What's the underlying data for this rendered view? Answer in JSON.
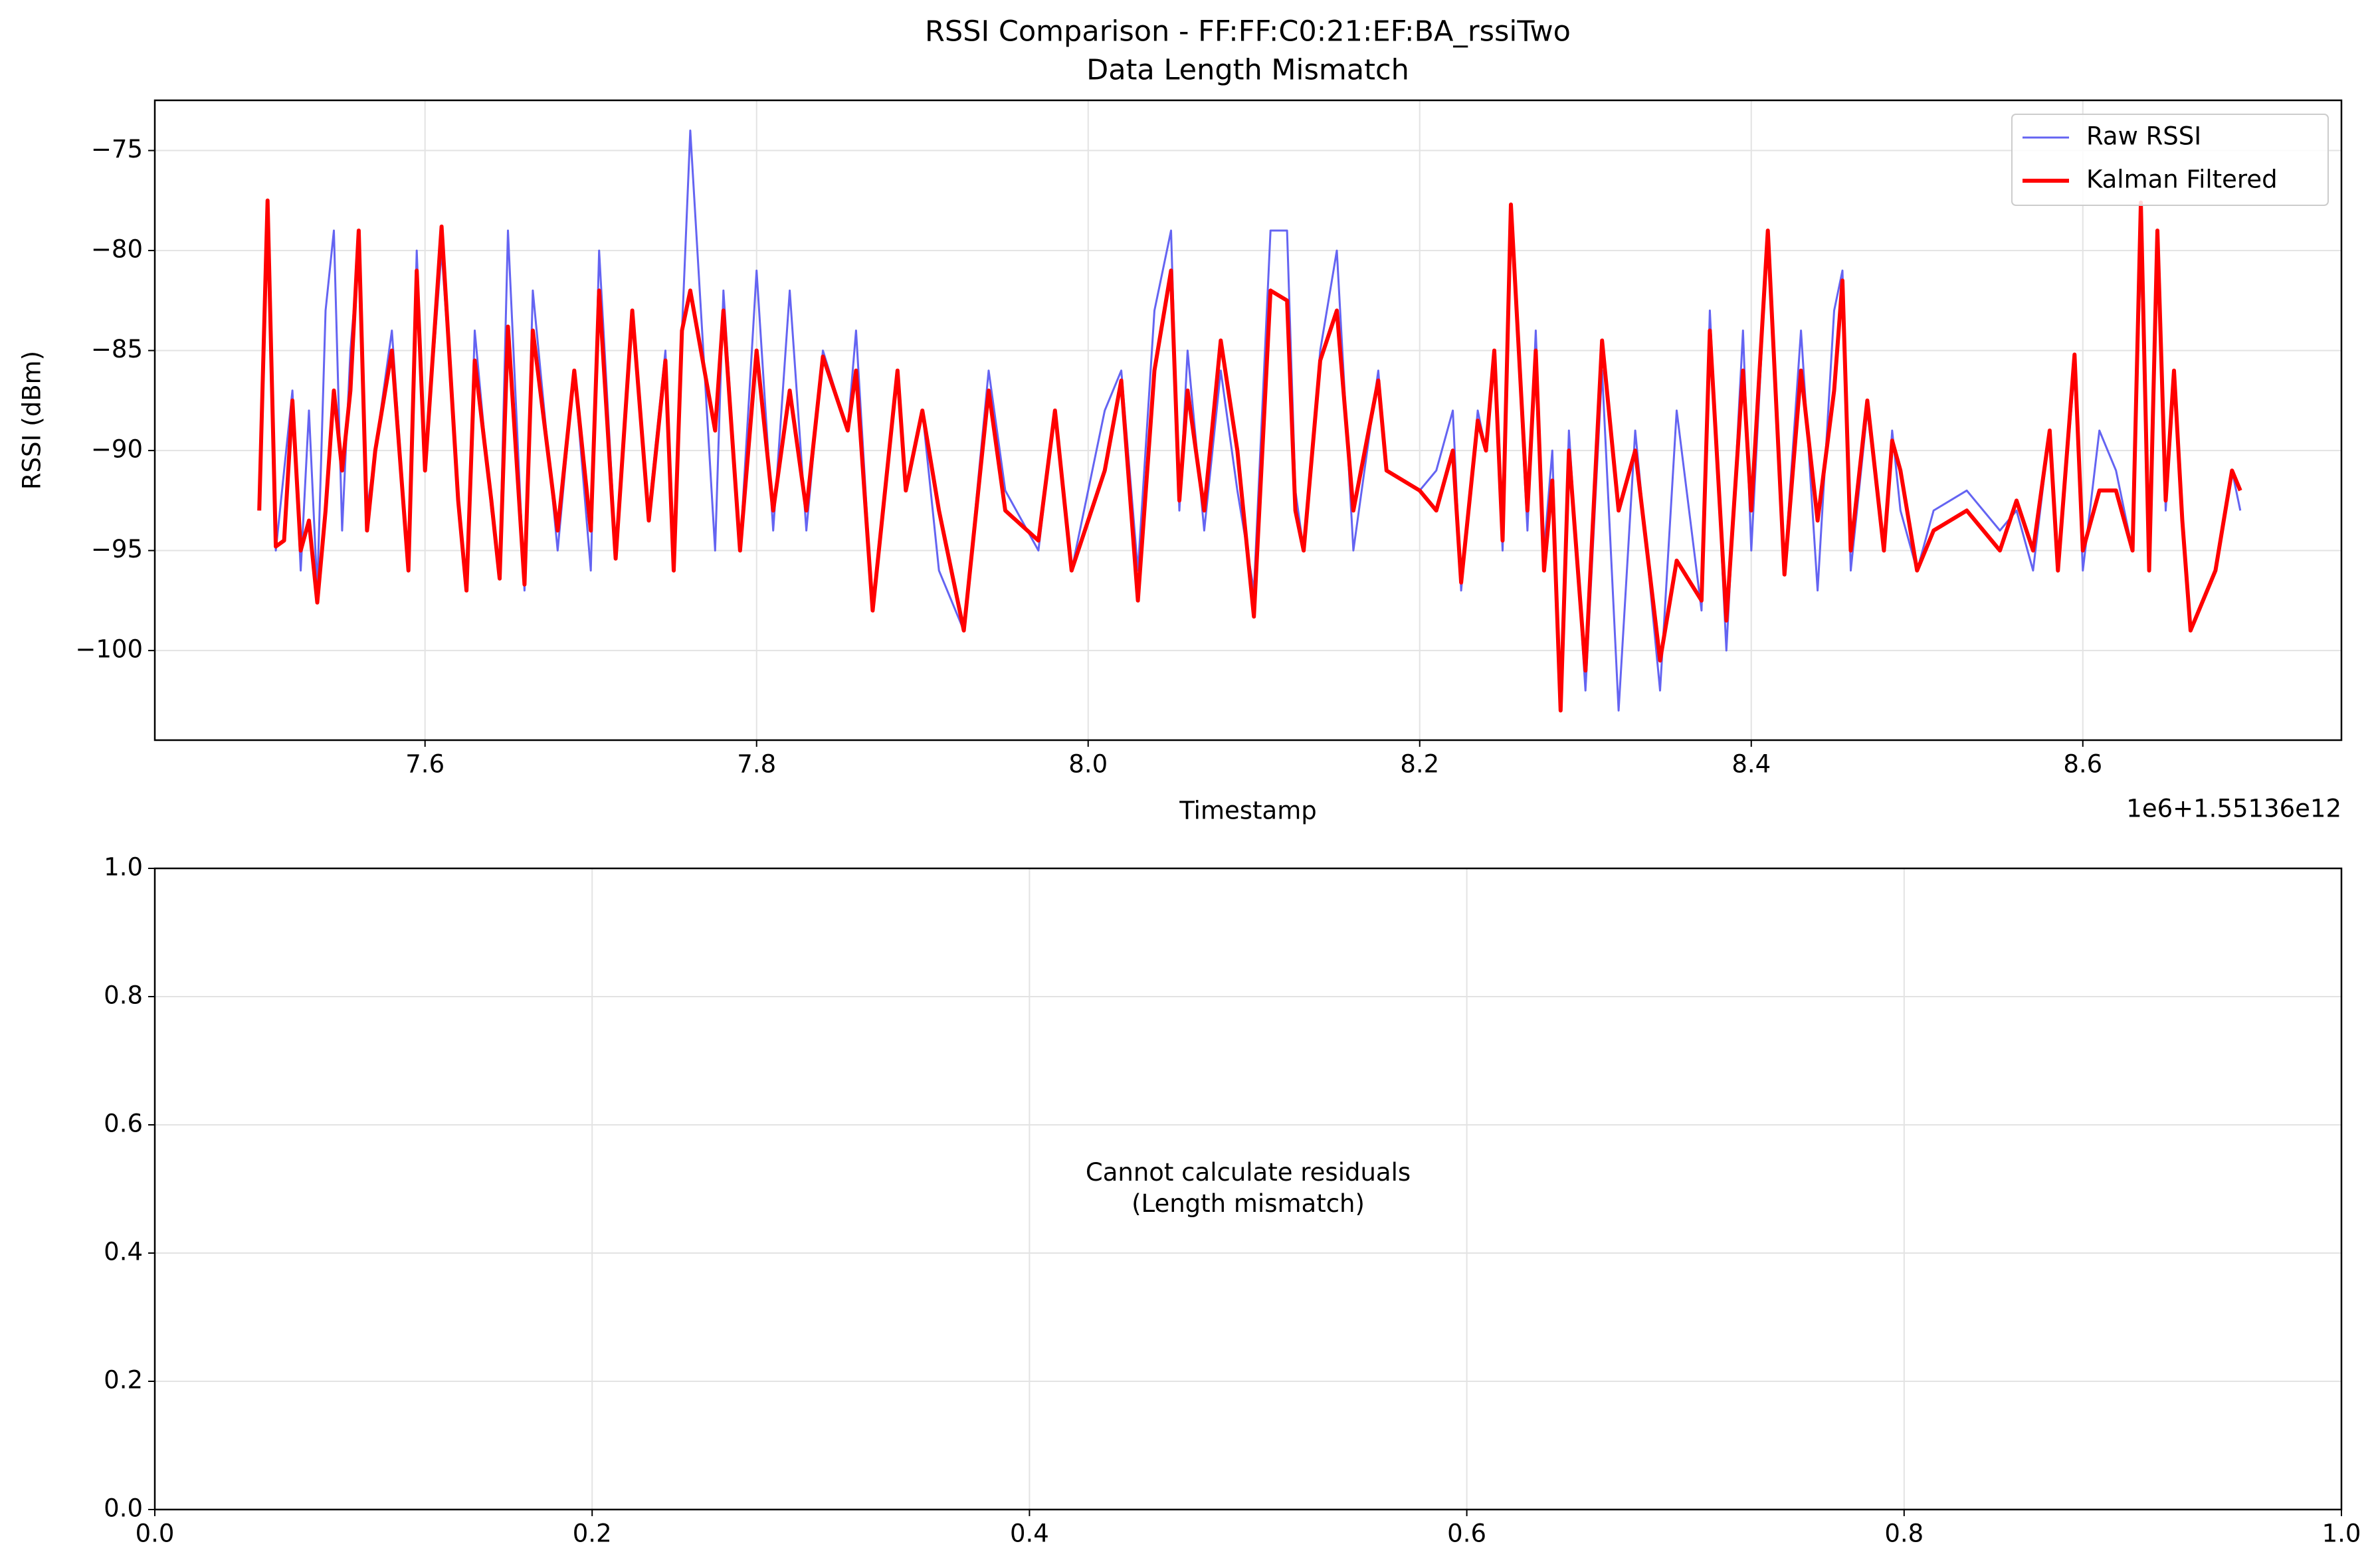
{
  "chart_data": [
    {
      "type": "line",
      "title": "RSSI Comparison - FF:FF:C0:21:EF:BA_rssiTwo",
      "subtitle": "Data Length Mismatch",
      "xlabel": "Timestamp",
      "ylabel": "RSSI (dBm)",
      "x_offset_label": "1e6+1.55136e12",
      "xlim": [
        7.437,
        8.756
      ],
      "ylim": [
        -104.48,
        -72.49
      ],
      "xticks": [
        7.6,
        7.8,
        {
          "value": 8,
          "label": "8.0"
        },
        8.2,
        8.4,
        8.6
      ],
      "yticks": [
        {
          "value": -75,
          "label": "−75"
        },
        {
          "value": -80,
          "label": "−80"
        },
        {
          "value": -85,
          "label": "−85"
        },
        {
          "value": -90,
          "label": "−90"
        },
        {
          "value": -95,
          "label": "−95"
        },
        {
          "value": -100,
          "label": "−100"
        }
      ],
      "grid": true,
      "legend": "upper right",
      "x": [
        7.5,
        7.505,
        7.51,
        7.515,
        7.52,
        7.525,
        7.53,
        7.535,
        7.54,
        7.545,
        7.55,
        7.555,
        7.56,
        7.565,
        7.57,
        7.58,
        7.59,
        7.595,
        7.6,
        7.61,
        7.62,
        7.625,
        7.63,
        7.64,
        7.645,
        7.65,
        7.66,
        7.665,
        7.68,
        7.69,
        7.7,
        7.705,
        7.715,
        7.725,
        7.735,
        7.745,
        7.75,
        7.755,
        7.76,
        7.775,
        7.78,
        7.79,
        7.8,
        7.81,
        7.82,
        7.83,
        7.84,
        7.855,
        7.86,
        7.87,
        7.885,
        7.89,
        7.9,
        7.91,
        7.925,
        7.94,
        7.95,
        7.97,
        7.98,
        7.99,
        8.01,
        8.02,
        8.03,
        8.04,
        8.05,
        8.055,
        8.06,
        8.07,
        8.08,
        8.09,
        8.1,
        8.11,
        8.12,
        8.125,
        8.13,
        8.14,
        8.15,
        8.16,
        8.175,
        8.18,
        8.2,
        8.21,
        8.22,
        8.225,
        8.235,
        8.24,
        8.245,
        8.25,
        8.255,
        8.265,
        8.27,
        8.275,
        8.28,
        8.285,
        8.29,
        8.3,
        8.31,
        8.32,
        8.33,
        8.345,
        8.355,
        8.37,
        8.375,
        8.385,
        8.395,
        8.4,
        8.41,
        8.42,
        8.43,
        8.44,
        8.45,
        8.455,
        8.46,
        8.47,
        8.48,
        8.485,
        8.49,
        8.5,
        8.51,
        8.53,
        8.55,
        8.56,
        8.57,
        8.58,
        8.585,
        8.595,
        8.6,
        8.61,
        8.62,
        8.63,
        8.635,
        8.64,
        8.645,
        8.65,
        8.655,
        8.66,
        8.665,
        8.68,
        8.69,
        8.695
      ],
      "series": [
        {
          "name": "Raw RSSI",
          "color": "#6464f2",
          "width": 3,
          "values": [
            -93,
            -78,
            -95,
            -91,
            -87,
            -96,
            -88,
            -97,
            -83,
            -79,
            -94,
            -85,
            -80,
            -93,
            -90,
            -84,
            -96,
            -80,
            -91,
            -80,
            -92,
            -97,
            -84,
            -93,
            -96,
            -79,
            -97,
            -82,
            -95,
            -86,
            -96,
            -80,
            -95,
            -83,
            -93,
            -85,
            -96,
            -84,
            -74,
            -95,
            -82,
            -95,
            -81,
            -94,
            -82,
            -94,
            -85,
            -89,
            -84,
            -98,
            -86,
            -92,
            -88,
            -96,
            -99,
            -86,
            -92,
            -95,
            -88,
            -96,
            -88,
            -86,
            -96,
            -83,
            -79,
            -93,
            -85,
            -94,
            -86,
            -92,
            -97,
            -79,
            -79,
            -92,
            -95,
            -85,
            -80,
            -95,
            -86,
            -91,
            -92,
            -91,
            -88,
            -97,
            -88,
            -90,
            -85,
            -95,
            -78,
            -94,
            -84,
            -95,
            -90,
            -103,
            -89,
            -102,
            -86,
            -103,
            -89,
            -102,
            -88,
            -98,
            -83,
            -100,
            -84,
            -95,
            -79,
            -96,
            -84,
            -97,
            -83,
            -81,
            -96,
            -88,
            -95,
            -89,
            -93,
            -96,
            -93,
            -92,
            -94,
            -93,
            -96,
            -89,
            -96,
            -86,
            -96,
            -89,
            -91,
            -95,
            -80,
            -96,
            -79,
            -93,
            -86,
            -93,
            -99,
            -96,
            -91,
            -93
          ]
        },
        {
          "name": "Kalman Filtered",
          "color": "#ff0000",
          "width": 6,
          "values": [
            -93,
            -77.5,
            -94.8,
            -94.5,
            -87.5,
            -95,
            -93.5,
            -97.6,
            -93,
            -87,
            -91,
            -87,
            -79,
            -94,
            -90,
            -85,
            -96,
            -81,
            -91,
            -78.8,
            -92.5,
            -97,
            -85.5,
            -92.5,
            -96.4,
            -83.8,
            -96.7,
            -84,
            -94,
            -86,
            -94,
            -82,
            -95.4,
            -83,
            -93.5,
            -85.5,
            -96,
            -84,
            -82,
            -89,
            -83,
            -95,
            -85,
            -93,
            -87,
            -93,
            -85.3,
            -89,
            -86,
            -98,
            -86,
            -92,
            -88,
            -93,
            -99,
            -87,
            -93,
            -94.5,
            -88,
            -96,
            -91,
            -86.5,
            -97.5,
            -86,
            -81,
            -92.5,
            -87,
            -93,
            -84.5,
            -90,
            -98.3,
            -82,
            -82.5,
            -93,
            -95,
            -85.5,
            -83,
            -93,
            -86.5,
            -91,
            -92,
            -93,
            -90,
            -96.6,
            -88.5,
            -90,
            -85,
            -94.5,
            -77.7,
            -93,
            -85,
            -96,
            -91.5,
            -103,
            -90,
            -101,
            -84.5,
            -93,
            -90,
            -100.5,
            -95.5,
            -97.5,
            -84,
            -98.5,
            -86,
            -93,
            -79,
            -96.2,
            -86,
            -93.5,
            -87,
            -81.5,
            -95,
            -87.5,
            -95,
            -89.5,
            -91,
            -96,
            -94,
            -93,
            -95,
            -92.5,
            -95,
            -89,
            -96,
            -85.2,
            -95,
            -92,
            -92,
            -95,
            -77.6,
            -96,
            -79,
            -92.5,
            -86,
            -93.5,
            -99,
            -96,
            -91,
            -92
          ]
        }
      ]
    },
    {
      "type": "blank",
      "annotation": [
        "Cannot calculate residuals",
        "(Length mismatch)"
      ],
      "xlim": [
        0,
        1
      ],
      "ylim": [
        0,
        1
      ],
      "xticks": [
        {
          "value": 0,
          "label": "0.0"
        },
        0.2,
        0.4,
        0.6,
        0.8,
        {
          "value": 1,
          "label": "1.0"
        }
      ],
      "yticks": [
        {
          "value": 0,
          "label": "0.0"
        },
        0.2,
        0.4,
        0.6,
        0.8,
        {
          "value": 1,
          "label": "1.0"
        }
      ],
      "grid": true
    }
  ]
}
